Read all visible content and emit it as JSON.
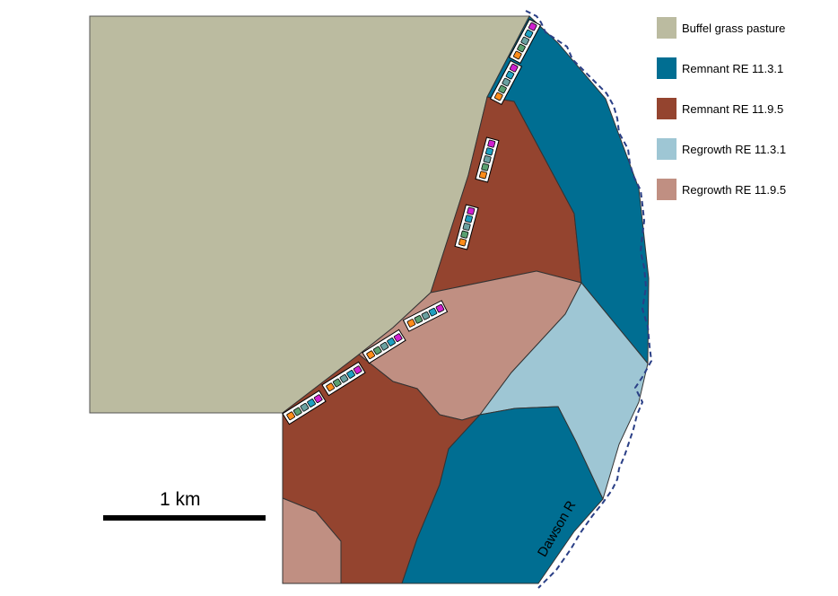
{
  "legend": {
    "items": [
      {
        "label": "Buffel grass pasture",
        "color": "#bbbba0"
      },
      {
        "label": "Remnant RE 11.3.1",
        "color": "#006e92"
      },
      {
        "label": "Remnant RE 11.9.5",
        "color": "#94442f"
      },
      {
        "label": "Regrowth RE 11.3.1",
        "color": "#9ec6d4"
      },
      {
        "label": "Regrowth RE 11.9.5",
        "color": "#c08f82"
      }
    ]
  },
  "scale_bar": {
    "label": "1 km",
    "distance_km": 1
  },
  "river": {
    "label": "Dawson R"
  },
  "transect_colors": [
    "#ff8c1a",
    "#5aa070",
    "#6aa0a0",
    "#1f9fc0",
    "#d020d0"
  ]
}
